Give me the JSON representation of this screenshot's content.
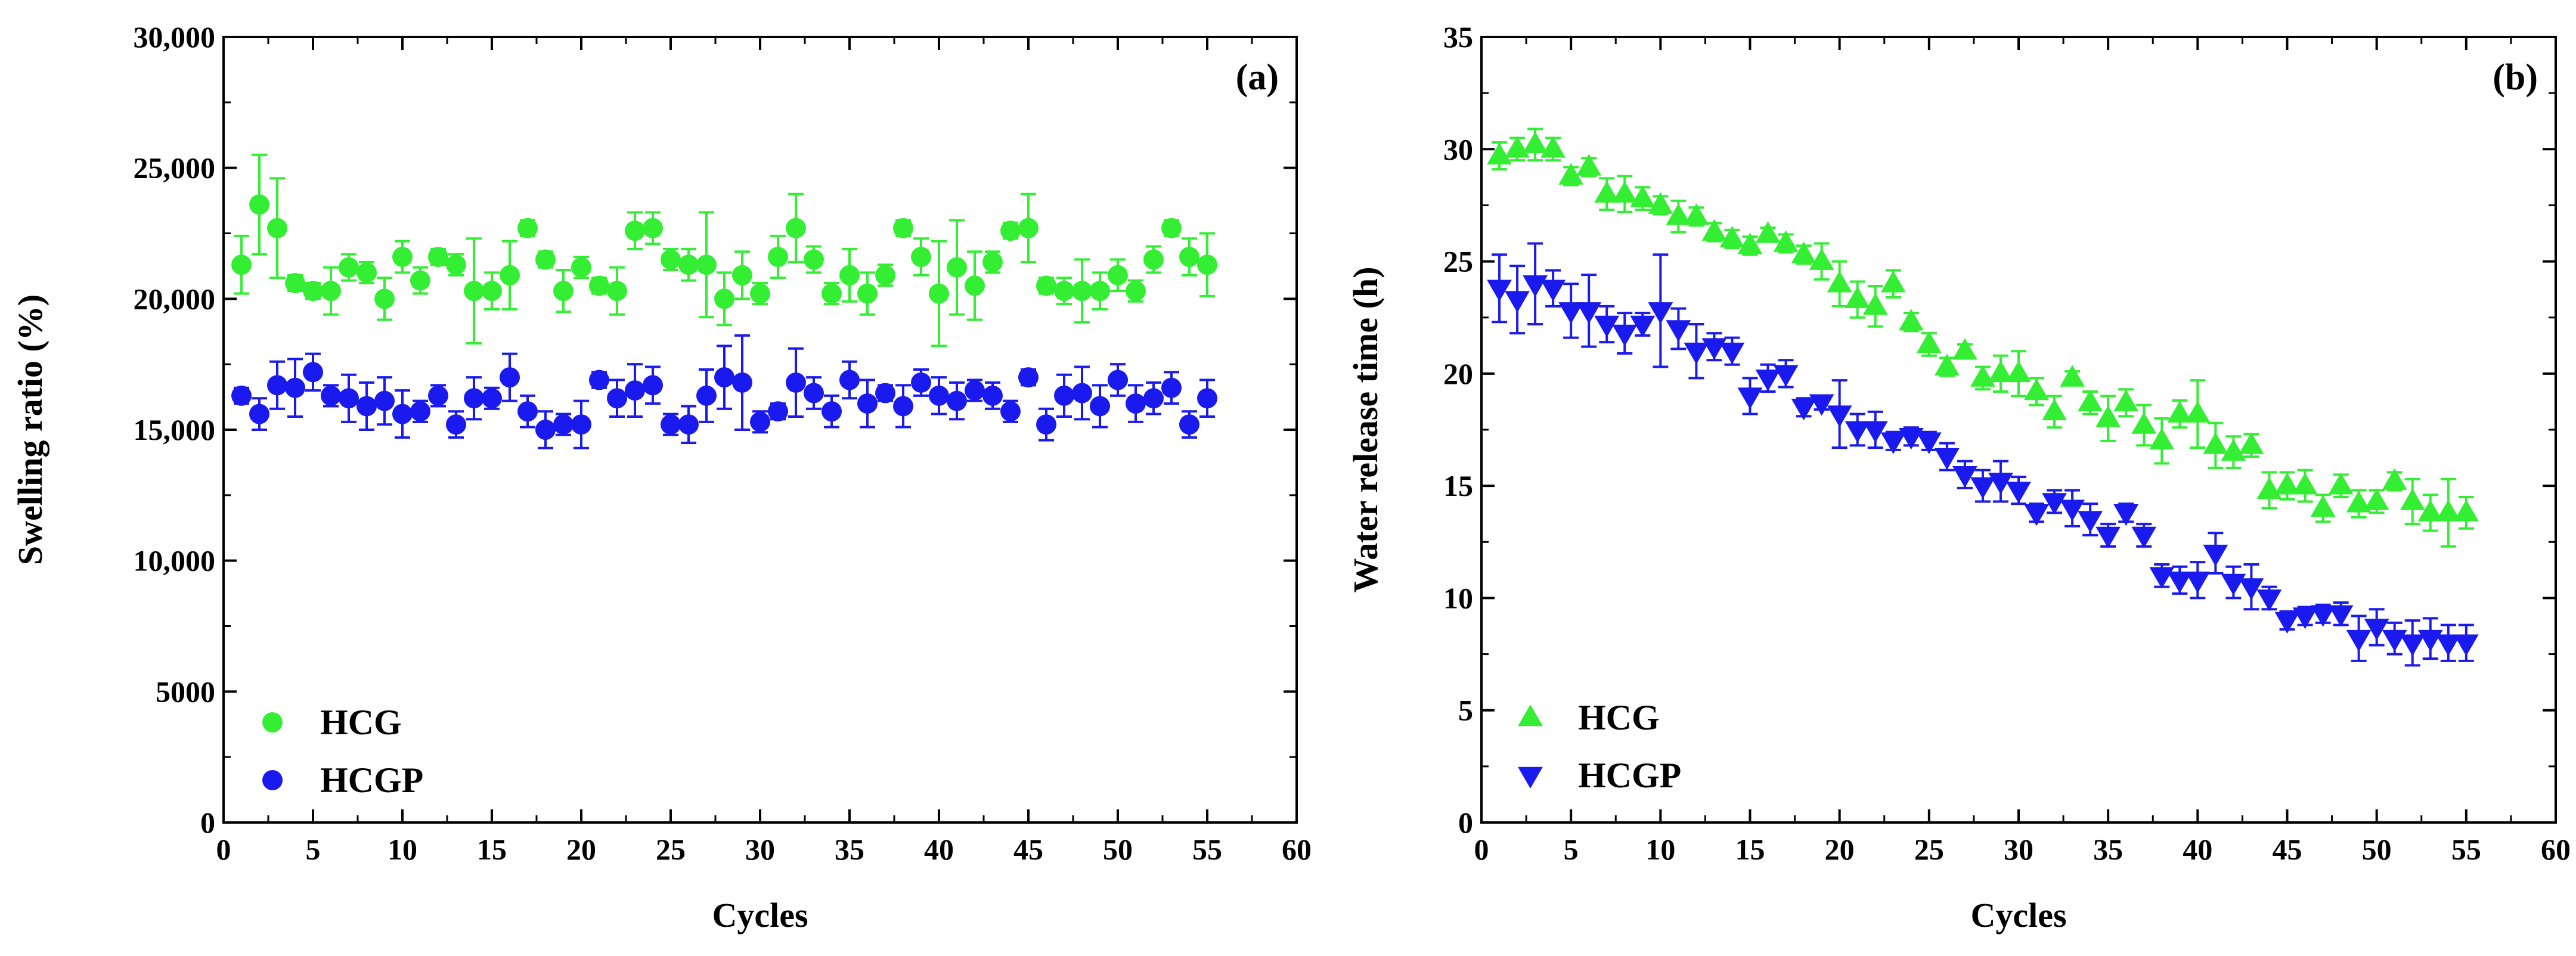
{
  "colors": {
    "hcg": "#33ee33",
    "hcgp": "#1a1aee",
    "axis": "#000000"
  },
  "chart_data": [
    {
      "type": "scatter",
      "panel_label": "(a)",
      "title": "",
      "xlabel": "Cycles",
      "ylabel": "Swelling ratio (%)",
      "xlim": [
        0,
        60
      ],
      "ylim": [
        0,
        30000
      ],
      "xticks": [
        0,
        5,
        10,
        15,
        20,
        25,
        30,
        35,
        40,
        45,
        50,
        55,
        60
      ],
      "yticks": [
        0,
        5000,
        10000,
        15000,
        20000,
        25000,
        30000
      ],
      "ytick_labels": [
        "0",
        "5000",
        "10,000",
        "15,000",
        "20,000",
        "25,000",
        "30,000"
      ],
      "legend_position": "bottom-left",
      "series": [
        {
          "name": "HCG",
          "marker": "circle",
          "color_key": "hcg",
          "x": [
            1,
            2,
            3,
            4,
            5,
            6,
            7,
            8,
            9,
            10,
            11,
            12,
            13,
            14,
            15,
            16,
            17,
            18,
            19,
            20,
            21,
            22,
            23,
            24,
            25,
            26,
            27,
            28,
            29,
            30,
            31,
            32,
            33,
            34,
            35,
            36,
            37,
            38,
            39,
            40,
            41,
            42,
            43,
            44,
            45,
            46,
            47,
            48,
            49,
            50,
            51,
            52,
            53,
            54,
            55
          ],
          "y": [
            21300,
            23600,
            22700,
            20600,
            20300,
            20300,
            21200,
            21000,
            20000,
            21600,
            20700,
            21600,
            21300,
            20300,
            20300,
            20900,
            22700,
            21500,
            20300,
            21200,
            20500,
            20300,
            22600,
            22700,
            21500,
            21300,
            21300,
            20000,
            20900,
            20200,
            21600,
            22700,
            21500,
            20200,
            20900,
            20200,
            20900,
            22700,
            21600,
            20200,
            21200,
            20500,
            21400,
            22600,
            22700,
            20500,
            20300,
            20300,
            20300,
            20900,
            20300,
            21500,
            22700,
            21600,
            21300
          ],
          "err": [
            1100,
            1900,
            1900,
            300,
            300,
            900,
            500,
            400,
            800,
            600,
            500,
            300,
            400,
            2000,
            700,
            1300,
            300,
            300,
            800,
            400,
            300,
            900,
            700,
            600,
            400,
            600,
            2000,
            1000,
            900,
            400,
            800,
            1300,
            500,
            400,
            1000,
            800,
            400,
            300,
            700,
            2000,
            1800,
            1300,
            400,
            300,
            1300,
            300,
            500,
            1200,
            700,
            600,
            400,
            500,
            300,
            700,
            1200
          ]
        },
        {
          "name": "HCGP",
          "marker": "circle",
          "color_key": "hcgp",
          "x": [
            1,
            2,
            3,
            4,
            5,
            6,
            7,
            8,
            9,
            10,
            11,
            12,
            13,
            14,
            15,
            16,
            17,
            18,
            19,
            20,
            21,
            22,
            23,
            24,
            25,
            26,
            27,
            28,
            29,
            30,
            31,
            32,
            33,
            34,
            35,
            36,
            37,
            38,
            39,
            40,
            41,
            42,
            43,
            44,
            45,
            46,
            47,
            48,
            49,
            50,
            51,
            52,
            53,
            54,
            55
          ],
          "y": [
            16300,
            15600,
            16700,
            16600,
            17200,
            16300,
            16200,
            15900,
            16100,
            15600,
            15700,
            16300,
            15200,
            16200,
            16200,
            17000,
            15700,
            15000,
            15200,
            15200,
            16900,
            16200,
            16500,
            16700,
            15200,
            15200,
            16300,
            17000,
            16800,
            15300,
            15700,
            16800,
            16400,
            15700,
            16900,
            16000,
            16400,
            15900,
            16800,
            16300,
            16100,
            16500,
            16300,
            15700,
            17000,
            15200,
            16300,
            16400,
            15900,
            16900,
            16000,
            16200,
            16600,
            15200,
            16200
          ],
          "err": [
            300,
            600,
            900,
            1100,
            700,
            400,
            900,
            900,
            900,
            900,
            400,
            400,
            500,
            800,
            400,
            900,
            600,
            700,
            400,
            900,
            300,
            700,
            1000,
            700,
            400,
            700,
            1000,
            1200,
            1800,
            400,
            300,
            1300,
            600,
            600,
            700,
            900,
            300,
            800,
            500,
            700,
            700,
            400,
            500,
            400,
            300,
            600,
            800,
            1000,
            800,
            600,
            700,
            600,
            600,
            500,
            700
          ]
        }
      ]
    },
    {
      "type": "scatter",
      "panel_label": "(b)",
      "title": "",
      "xlabel": "Cycles",
      "ylabel": "Water release time (h)",
      "xlim": [
        0,
        60
      ],
      "ylim": [
        0,
        35
      ],
      "xticks": [
        0,
        5,
        10,
        15,
        20,
        25,
        30,
        35,
        40,
        45,
        50,
        55,
        60
      ],
      "yticks": [
        0,
        5,
        10,
        15,
        20,
        25,
        30,
        35
      ],
      "ytick_labels": [
        "0",
        "5",
        "10",
        "15",
        "20",
        "25",
        "30",
        "35"
      ],
      "legend_position": "bottom-left",
      "series": [
        {
          "name": "HCG",
          "marker": "triangle-up",
          "color_key": "hcg",
          "x": [
            1,
            2,
            3,
            4,
            5,
            6,
            7,
            8,
            9,
            10,
            11,
            12,
            13,
            14,
            15,
            16,
            17,
            18,
            19,
            20,
            21,
            22,
            23,
            24,
            25,
            26,
            27,
            28,
            29,
            30,
            31,
            32,
            33,
            34,
            35,
            36,
            37,
            38,
            39,
            40,
            41,
            42,
            43,
            44,
            45,
            46,
            47,
            48,
            49,
            50,
            51,
            52,
            53,
            54,
            55
          ],
          "y": [
            29.7,
            30.0,
            30.2,
            30.0,
            28.8,
            29.2,
            28.0,
            28.0,
            27.8,
            27.5,
            27.0,
            27.0,
            26.3,
            26.0,
            25.7,
            26.2,
            25.8,
            25.3,
            25.0,
            24.0,
            23.3,
            23.0,
            24.0,
            22.3,
            21.3,
            20.3,
            21.0,
            19.8,
            20.0,
            20.0,
            19.2,
            18.3,
            19.8,
            18.7,
            18.0,
            18.7,
            17.7,
            17.0,
            18.2,
            18.2,
            16.8,
            16.5,
            16.8,
            14.8,
            15.0,
            15.0,
            14.0,
            15.0,
            14.2,
            14.3,
            15.2,
            14.3,
            13.8,
            13.8,
            13.8
          ],
          "err": [
            0.6,
            0.5,
            0.7,
            0.5,
            0.4,
            0.4,
            0.7,
            0.8,
            0.5,
            0.4,
            0.7,
            0.4,
            0.4,
            0.4,
            0.4,
            0.3,
            0.4,
            0.4,
            0.8,
            1.0,
            0.8,
            0.9,
            0.6,
            0.4,
            0.5,
            0.4,
            0.3,
            0.5,
            0.8,
            1.0,
            0.6,
            0.7,
            0.3,
            0.5,
            1.0,
            0.6,
            0.9,
            1.0,
            0.6,
            1.5,
            1.0,
            0.7,
            0.5,
            0.8,
            0.6,
            0.7,
            0.6,
            0.5,
            0.6,
            0.5,
            0.4,
            1.0,
            0.8,
            1.5,
            0.7
          ]
        },
        {
          "name": "HCGP",
          "marker": "triangle-down",
          "color_key": "hcgp",
          "x": [
            1,
            2,
            3,
            4,
            5,
            6,
            7,
            8,
            9,
            10,
            11,
            12,
            13,
            14,
            15,
            16,
            17,
            18,
            19,
            20,
            21,
            22,
            23,
            24,
            25,
            26,
            27,
            28,
            29,
            30,
            31,
            32,
            33,
            34,
            35,
            36,
            37,
            38,
            39,
            40,
            41,
            42,
            43,
            44,
            45,
            46,
            47,
            48,
            49,
            50,
            51,
            52,
            53,
            54,
            55
          ],
          "y": [
            23.8,
            23.3,
            24.0,
            23.8,
            22.8,
            22.8,
            22.2,
            21.8,
            22.2,
            22.8,
            22.0,
            21.0,
            21.2,
            21.0,
            19.0,
            19.8,
            20.0,
            18.5,
            18.7,
            18.2,
            17.5,
            17.5,
            17.0,
            17.2,
            17.0,
            16.3,
            15.5,
            15.0,
            15.2,
            14.8,
            13.8,
            14.3,
            14.0,
            13.5,
            12.8,
            13.8,
            12.8,
            11.0,
            10.8,
            10.8,
            12.0,
            10.7,
            10.5,
            10.0,
            9.0,
            9.2,
            9.3,
            9.3,
            8.2,
            8.7,
            8.2,
            8.0,
            8.2,
            8.0,
            8.0
          ],
          "err": [
            1.5,
            1.5,
            1.8,
            0.8,
            1.2,
            1.6,
            0.8,
            0.9,
            0.5,
            2.5,
            0.9,
            1.2,
            0.6,
            0.6,
            0.8,
            0.6,
            0.6,
            0.4,
            0.3,
            1.5,
            0.7,
            0.8,
            0.4,
            0.4,
            0.4,
            0.6,
            0.6,
            0.7,
            0.9,
            0.6,
            0.4,
            0.5,
            0.8,
            0.7,
            0.5,
            0.4,
            0.5,
            0.5,
            0.6,
            0.8,
            0.9,
            0.7,
            1.0,
            0.5,
            0.4,
            0.4,
            0.4,
            0.5,
            1.0,
            0.8,
            0.7,
            1.0,
            0.9,
            0.8,
            0.8
          ]
        }
      ]
    }
  ]
}
